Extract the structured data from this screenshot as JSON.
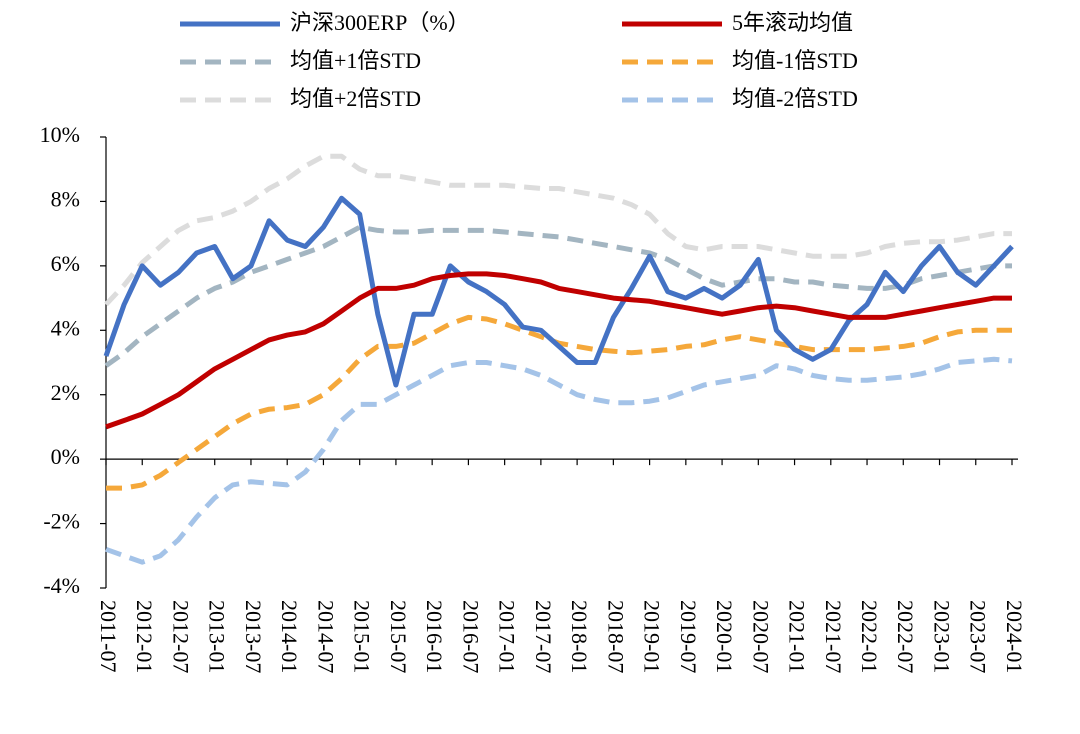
{
  "chart_data": {
    "type": "line",
    "categories": [
      "2011-07",
      null,
      "2012-01",
      null,
      "2012-07",
      null,
      "2013-01",
      null,
      "2013-07",
      null,
      "2014-01",
      null,
      "2014-07",
      null,
      "2015-01",
      null,
      "2015-07",
      null,
      "2016-01",
      null,
      "2016-07",
      null,
      "2017-01",
      null,
      "2017-07",
      null,
      "2018-01",
      null,
      "2018-07",
      null,
      "2019-01",
      null,
      "2019-07",
      null,
      "2020-01",
      null,
      "2020-07",
      null,
      "2021-01",
      null,
      "2021-07",
      null,
      "2022-01",
      null,
      "2022-07",
      null,
      "2023-01",
      null,
      "2023-07",
      null,
      "2024-01"
    ],
    "ylim": [
      -4,
      10
    ],
    "yticks": [
      {
        "value": -4,
        "label": "-4%"
      },
      {
        "value": -2,
        "label": "-2%"
      },
      {
        "value": 0,
        "label": "0%"
      },
      {
        "value": 2,
        "label": "2%"
      },
      {
        "value": 4,
        "label": "4%"
      },
      {
        "value": 6,
        "label": "6%"
      },
      {
        "value": 8,
        "label": "8%"
      },
      {
        "value": 10,
        "label": "10%"
      }
    ],
    "grid": false,
    "series": [
      {
        "name": "沪深300ERP（%）",
        "color": "#4472c4",
        "dashed": false,
        "values": [
          3.2,
          4.8,
          6.0,
          5.4,
          5.8,
          6.4,
          6.6,
          5.6,
          6.0,
          7.4,
          6.8,
          6.6,
          7.2,
          8.1,
          7.6,
          4.5,
          2.3,
          4.5,
          4.5,
          6.0,
          5.5,
          5.2,
          4.8,
          4.1,
          4.0,
          3.5,
          3.0,
          3.0,
          4.4,
          5.3,
          6.3,
          5.2,
          5.0,
          5.3,
          5.0,
          5.4,
          6.2,
          4.0,
          3.4,
          3.1,
          3.4,
          4.3,
          4.8,
          5.8,
          5.2,
          6.0,
          6.6,
          5.8,
          5.4,
          6.0,
          6.6
        ]
      },
      {
        "name": "5年滚动均值",
        "color": "#c00000",
        "dashed": false,
        "values": [
          1.0,
          1.2,
          1.4,
          1.7,
          2.0,
          2.4,
          2.8,
          3.1,
          3.4,
          3.7,
          3.85,
          3.95,
          4.2,
          4.6,
          5.0,
          5.3,
          5.3,
          5.4,
          5.6,
          5.7,
          5.75,
          5.75,
          5.7,
          5.6,
          5.5,
          5.3,
          5.2,
          5.1,
          5.0,
          4.95,
          4.9,
          4.8,
          4.7,
          4.6,
          4.5,
          4.6,
          4.7,
          4.75,
          4.7,
          4.6,
          4.5,
          4.4,
          4.4,
          4.4,
          4.5,
          4.6,
          4.7,
          4.8,
          4.9,
          5.0,
          5.0
        ]
      },
      {
        "name": "均值+1倍STD",
        "color": "#a3b5c1",
        "dashed": true,
        "values": [
          2.9,
          3.3,
          3.8,
          4.2,
          4.6,
          5.0,
          5.3,
          5.5,
          5.8,
          6.0,
          6.2,
          6.4,
          6.6,
          6.9,
          7.2,
          7.1,
          7.05,
          7.05,
          7.1,
          7.1,
          7.1,
          7.1,
          7.05,
          7.0,
          6.95,
          6.9,
          6.8,
          6.7,
          6.6,
          6.5,
          6.4,
          6.2,
          5.9,
          5.6,
          5.4,
          5.5,
          5.6,
          5.6,
          5.5,
          5.5,
          5.4,
          5.35,
          5.3,
          5.3,
          5.4,
          5.6,
          5.7,
          5.8,
          5.9,
          6.0,
          6.0
        ]
      },
      {
        "name": "均值-1倍STD",
        "color": "#f5a83a",
        "dashed": true,
        "values": [
          -0.9,
          -0.9,
          -0.8,
          -0.5,
          -0.1,
          0.3,
          0.7,
          1.1,
          1.4,
          1.55,
          1.6,
          1.7,
          2.0,
          2.5,
          3.1,
          3.5,
          3.5,
          3.6,
          3.9,
          4.2,
          4.4,
          4.35,
          4.2,
          4.0,
          3.8,
          3.6,
          3.5,
          3.4,
          3.35,
          3.3,
          3.35,
          3.4,
          3.5,
          3.55,
          3.7,
          3.8,
          3.7,
          3.6,
          3.5,
          3.4,
          3.4,
          3.4,
          3.4,
          3.45,
          3.5,
          3.6,
          3.8,
          3.95,
          4.0,
          4.0,
          4.0
        ]
      },
      {
        "name": "均值+2倍STD",
        "color": "#dcdcdc",
        "dashed": true,
        "values": [
          4.8,
          5.4,
          6.1,
          6.6,
          7.1,
          7.4,
          7.5,
          7.7,
          8.0,
          8.4,
          8.7,
          9.1,
          9.4,
          9.4,
          9.0,
          8.8,
          8.8,
          8.7,
          8.6,
          8.5,
          8.5,
          8.5,
          8.5,
          8.45,
          8.4,
          8.4,
          8.3,
          8.2,
          8.1,
          7.9,
          7.6,
          7.0,
          6.6,
          6.5,
          6.6,
          6.6,
          6.6,
          6.5,
          6.4,
          6.3,
          6.3,
          6.3,
          6.4,
          6.6,
          6.7,
          6.75,
          6.75,
          6.8,
          6.9,
          7.0,
          7.0
        ]
      },
      {
        "name": "均值-2倍STD",
        "color": "#a4c3e8",
        "dashed": true,
        "values": [
          -2.8,
          -3.0,
          -3.2,
          -3.0,
          -2.5,
          -1.8,
          -1.2,
          -0.8,
          -0.7,
          -0.75,
          -0.8,
          -0.4,
          0.3,
          1.2,
          1.7,
          1.7,
          2.0,
          2.3,
          2.6,
          2.9,
          3.0,
          3.0,
          2.9,
          2.8,
          2.6,
          2.3,
          2.0,
          1.85,
          1.75,
          1.75,
          1.8,
          1.9,
          2.1,
          2.3,
          2.4,
          2.5,
          2.6,
          2.9,
          2.8,
          2.6,
          2.5,
          2.45,
          2.45,
          2.5,
          2.55,
          2.65,
          2.8,
          3.0,
          3.05,
          3.1,
          3.05
        ]
      }
    ]
  }
}
